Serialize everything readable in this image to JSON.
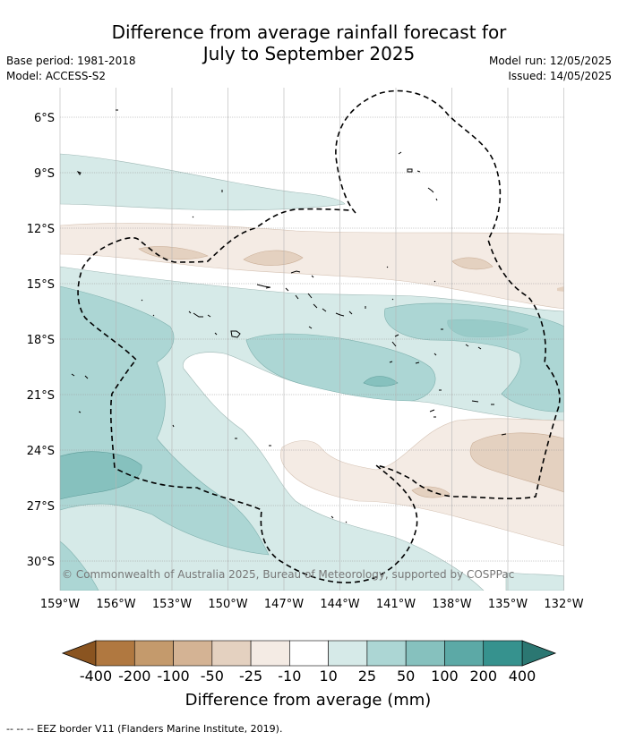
{
  "title_line1": "Difference from average rainfall forecast for",
  "title_line2": "July to September 2025",
  "base_period": "Base period: 1981-2018",
  "model": "Model: ACCESS-S2",
  "model_run": "Model run: 12/05/2025",
  "issued": "Issued: 14/05/2025",
  "copyright": "© Commonwealth of Australia 2025, Bureau of Meteorology, supported by COSPPac",
  "lat_labels": [
    "6°S",
    "9°S",
    "12°S",
    "15°S",
    "18°S",
    "21°S",
    "24°S",
    "27°S",
    "30°S"
  ],
  "lon_labels": [
    "159°W",
    "156°W",
    "153°W",
    "150°W",
    "147°W",
    "144°W",
    "141°W",
    "138°W",
    "135°W",
    "132°W"
  ],
  "colorbar": {
    "title": "Difference from average (mm)",
    "ticks": [
      "-400",
      "-200",
      "-100",
      "-50",
      "-25",
      "-10",
      "10",
      "25",
      "50",
      "100",
      "200",
      "400"
    ],
    "colors": [
      "#b07840",
      "#c49a6c",
      "#d4b394",
      "#e4d1c0",
      "#f4ebe4",
      "#ffffff",
      "#d6eae8",
      "#acd6d4",
      "#86c1be",
      "#5ca9a6",
      "#36928e"
    ],
    "low_extend_color": "#8a5420",
    "high_extend_color": "#2b7772"
  },
  "footnote": "--  --  -- EEZ border V11 (Flanders Marine Institute, 2019)."
}
